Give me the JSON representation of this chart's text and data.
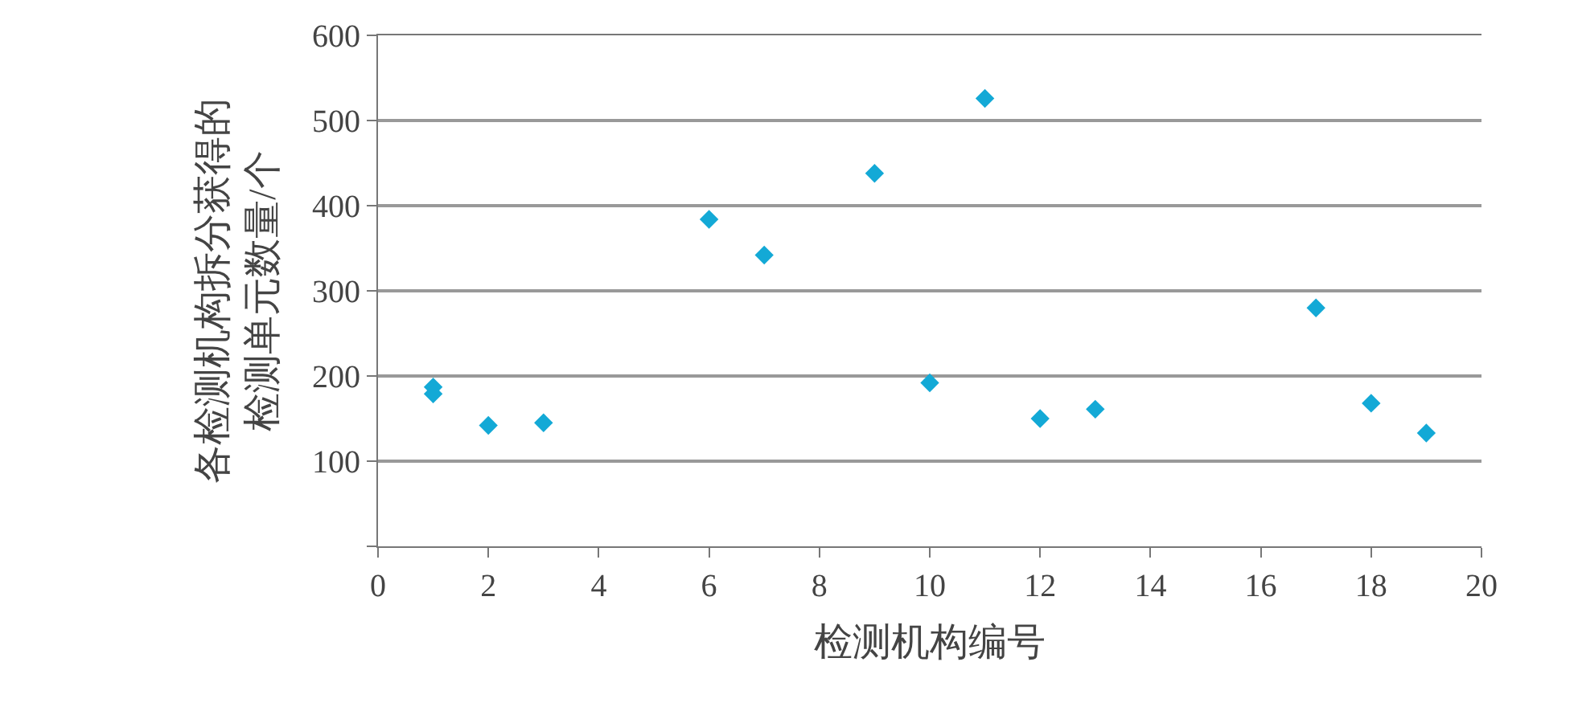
{
  "chart_data": {
    "type": "scatter",
    "xlabel": "检测机构编号",
    "ylabel": "各检测机构拆分获得的检测单元数量/个",
    "x": [
      1,
      1,
      2,
      3,
      6,
      7,
      9,
      10,
      11,
      12,
      13,
      17,
      18,
      19
    ],
    "values": [
      187,
      179,
      142,
      145,
      384,
      342,
      438,
      192,
      526,
      150,
      161,
      280,
      168,
      133
    ],
    "color": "#13a9d6",
    "marker": "diamond",
    "grid": "y",
    "xlim": [
      0,
      20
    ],
    "xticks": [
      0,
      2,
      4,
      6,
      8,
      10,
      12,
      14,
      16,
      18,
      20
    ],
    "ylim": [
      0,
      600
    ],
    "yticks": [
      {
        "value": 0,
        "label": null
      },
      100,
      200,
      300,
      400,
      500,
      600
    ]
  }
}
